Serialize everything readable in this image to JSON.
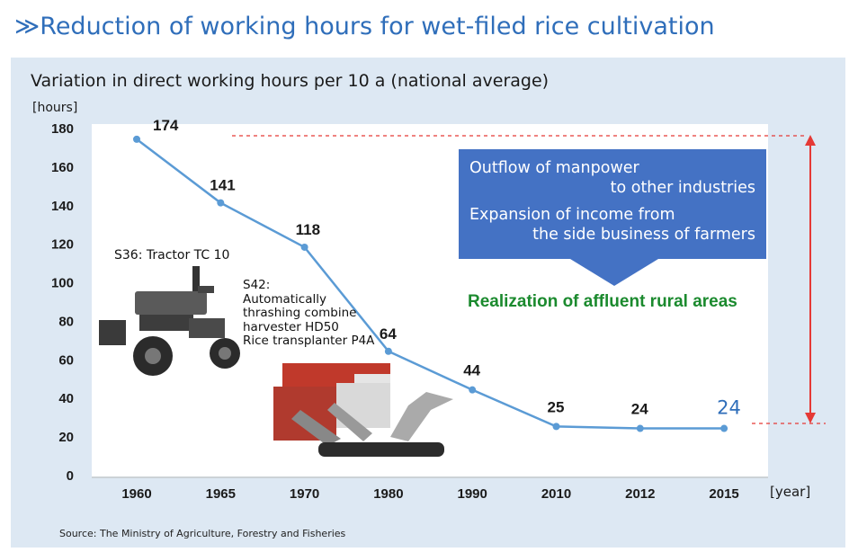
{
  "page": {
    "title": "≫Reduction of working hours for wet-filed rice cultivation",
    "source": "Source: The Ministry of Agriculture, Forestry and Fisheries"
  },
  "chart_data": {
    "type": "line",
    "title": "Variation in direct working hours per 10 a (national average)",
    "ylabel": "[hours]",
    "xlabel": "[year]",
    "categories": [
      "1960",
      "1965",
      "1970",
      "1980",
      "1990",
      "2010",
      "2012",
      "2015"
    ],
    "values": [
      174,
      141,
      118,
      64,
      44,
      25,
      24,
      24
    ],
    "data_labels": [
      "174",
      "141",
      "118",
      "64",
      "44",
      "25",
      "24",
      "24"
    ],
    "ylim": [
      0,
      180
    ],
    "yticks": [
      0,
      20,
      40,
      60,
      80,
      100,
      120,
      140,
      160,
      180
    ],
    "line_color": "#5b9bd5",
    "highlight_label_color": "#2f6eba",
    "grid": false
  },
  "annotations": {
    "box_lines": [
      "Outflow of manpower",
      "to other industries",
      "Expansion of income from",
      "the side business of farmers"
    ],
    "result": "Realization of affluent rural areas",
    "tractor_note": "S36: Tractor TC 10",
    "combine_note": [
      "S42:",
      "Automatically",
      "thrashing combine",
      "harvester HD50",
      "Rice transplanter P4A"
    ]
  }
}
